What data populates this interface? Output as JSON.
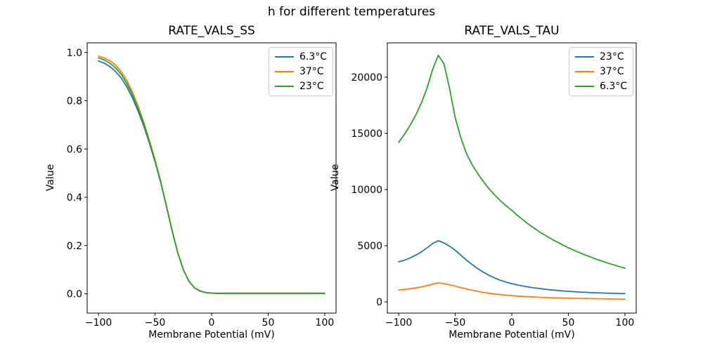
{
  "figure": {
    "suptitle": "h for different temperatures",
    "background": "#ffffff"
  },
  "palette": {
    "blue": "#1f77b4",
    "orange": "#ff7f0e",
    "green": "#2ca02c"
  },
  "chart_data": [
    {
      "type": "line",
      "title": "RATE_VALS_SS",
      "xlabel": "Membrane Potential (mV)",
      "ylabel": "Value",
      "xlim": [
        -110,
        110
      ],
      "ylim": [
        -0.08,
        1.04
      ],
      "xticks": [
        -100,
        -50,
        0,
        50,
        100
      ],
      "xticklabels": [
        "−100",
        "−50",
        "0",
        "50",
        "100"
      ],
      "yticks": [
        0.0,
        0.2,
        0.4,
        0.6,
        0.8,
        1.0
      ],
      "yticklabels": [
        "0.0",
        "0.2",
        "0.4",
        "0.6",
        "0.8",
        "1.0"
      ],
      "grid": false,
      "legend_position": "upper right",
      "x": [
        -100,
        -95,
        -90,
        -85,
        -80,
        -75,
        -70,
        -65,
        -60,
        -55,
        -50,
        -45,
        -40,
        -35,
        -30,
        -25,
        -20,
        -15,
        -10,
        -5,
        0,
        5,
        10,
        15,
        20,
        25,
        30,
        35,
        40,
        45,
        50,
        55,
        60,
        65,
        70,
        75,
        80,
        85,
        90,
        95,
        100
      ],
      "series": [
        {
          "name": "6.3°C",
          "color": "#1f77b4",
          "values": [
            0.965,
            0.956,
            0.942,
            0.922,
            0.895,
            0.858,
            0.812,
            0.757,
            0.695,
            0.624,
            0.548,
            0.461,
            0.364,
            0.262,
            0.171,
            0.1,
            0.052,
            0.024,
            0.011,
            0.005,
            0.003,
            0.002,
            0.002,
            0.002,
            0.002,
            0.002,
            0.002,
            0.002,
            0.002,
            0.002,
            0.002,
            0.002,
            0.002,
            0.002,
            0.002,
            0.002,
            0.002,
            0.002,
            0.002,
            0.002,
            0.002
          ]
        },
        {
          "name": "37°C",
          "color": "#ff7f0e",
          "values": [
            0.985,
            0.978,
            0.966,
            0.948,
            0.921,
            0.884,
            0.836,
            0.778,
            0.711,
            0.636,
            0.556,
            0.466,
            0.366,
            0.264,
            0.172,
            0.1,
            0.052,
            0.024,
            0.011,
            0.005,
            0.003,
            0.002,
            0.002,
            0.002,
            0.002,
            0.002,
            0.002,
            0.002,
            0.002,
            0.002,
            0.002,
            0.002,
            0.002,
            0.002,
            0.002,
            0.002,
            0.002,
            0.002,
            0.002,
            0.002,
            0.002
          ]
        },
        {
          "name": "23°C",
          "color": "#2ca02c",
          "values": [
            0.978,
            0.97,
            0.956,
            0.937,
            0.91,
            0.872,
            0.825,
            0.768,
            0.703,
            0.63,
            0.552,
            0.463,
            0.365,
            0.263,
            0.172,
            0.1,
            0.052,
            0.024,
            0.011,
            0.005,
            0.003,
            0.002,
            0.002,
            0.002,
            0.002,
            0.002,
            0.002,
            0.002,
            0.002,
            0.002,
            0.002,
            0.002,
            0.002,
            0.002,
            0.002,
            0.002,
            0.002,
            0.002,
            0.002,
            0.002,
            0.002
          ]
        }
      ]
    },
    {
      "type": "line",
      "title": "RATE_VALS_TAU",
      "xlabel": "Membrane Potential (mV)",
      "ylabel": "Value",
      "xlim": [
        -110,
        110
      ],
      "ylim": [
        -1000,
        23060
      ],
      "xticks": [
        -100,
        -50,
        0,
        50,
        100
      ],
      "xticklabels": [
        "−100",
        "−50",
        "0",
        "50",
        "100"
      ],
      "yticks": [
        0,
        5000,
        10000,
        15000,
        20000
      ],
      "yticklabels": [
        "0",
        "5000",
        "10000",
        "15000",
        "20000"
      ],
      "grid": false,
      "legend_position": "upper right",
      "x": [
        -100,
        -95,
        -90,
        -85,
        -80,
        -75,
        -70,
        -65,
        -60,
        -55,
        -50,
        -45,
        -40,
        -35,
        -30,
        -25,
        -20,
        -15,
        -10,
        -5,
        0,
        5,
        10,
        15,
        20,
        25,
        30,
        35,
        40,
        45,
        50,
        55,
        60,
        65,
        70,
        75,
        80,
        85,
        90,
        95,
        100
      ],
      "series": [
        {
          "name": "23°C",
          "color": "#1f77b4",
          "values": [
            3560,
            3700,
            3900,
            4150,
            4450,
            4800,
            5200,
            5440,
            5250,
            4950,
            4600,
            4150,
            3720,
            3320,
            2950,
            2630,
            2360,
            2120,
            1920,
            1760,
            1620,
            1505,
            1405,
            1320,
            1245,
            1180,
            1120,
            1065,
            1020,
            975,
            940,
            905,
            875,
            850,
            825,
            805,
            790,
            775,
            762,
            752,
            745
          ]
        },
        {
          "name": "37°C",
          "color": "#ff7f0e",
          "values": [
            1060,
            1110,
            1170,
            1240,
            1330,
            1440,
            1580,
            1690,
            1630,
            1520,
            1400,
            1270,
            1150,
            1040,
            935,
            845,
            765,
            700,
            645,
            595,
            550,
            515,
            480,
            452,
            428,
            406,
            388,
            371,
            356,
            342,
            330,
            319,
            309,
            299,
            290,
            281,
            273,
            265,
            257,
            250,
            243
          ]
        },
        {
          "name": "6.3°C",
          "color": "#2ca02c",
          "values": [
            14200,
            14900,
            15700,
            16600,
            17700,
            19000,
            20700,
            21950,
            21200,
            19000,
            16400,
            14600,
            13200,
            12200,
            11400,
            10700,
            10050,
            9500,
            9000,
            8550,
            8150,
            7700,
            7300,
            6900,
            6550,
            6200,
            5900,
            5600,
            5330,
            5070,
            4820,
            4590,
            4380,
            4170,
            3980,
            3790,
            3620,
            3450,
            3300,
            3145,
            3000
          ]
        }
      ]
    }
  ]
}
